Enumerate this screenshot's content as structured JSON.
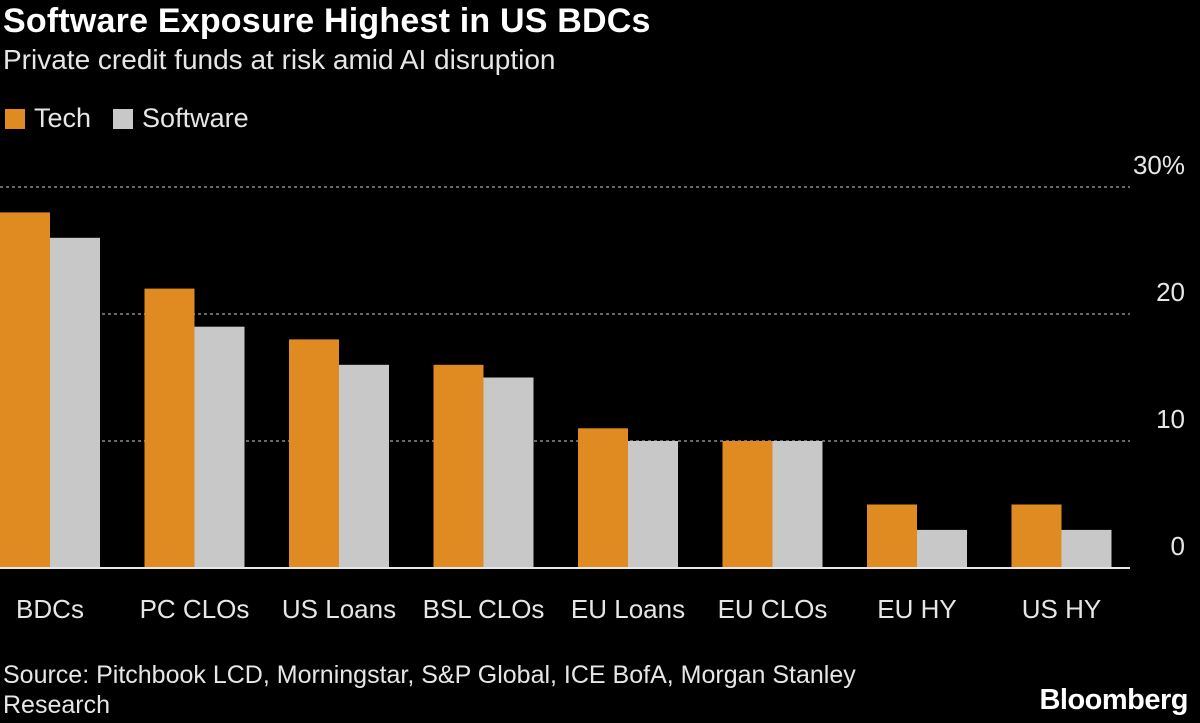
{
  "title": "Software Exposure Highest in US BDCs",
  "subtitle": "Private credit funds at risk amid AI disruption",
  "source": "Source: Pitchbook LCD, Morningstar, S&P Global, ICE BofA, Morgan Stanley Research",
  "logo": "Bloomberg",
  "colors": {
    "tech": "#e08b22",
    "software": "#c8c8c8",
    "grid": "#8a8a8a"
  },
  "chart_data": {
    "type": "bar",
    "categories": [
      "BDCs",
      "PC CLOs",
      "US Loans",
      "BSL CLOs",
      "EU Loans",
      "EU CLOs",
      "EU HY",
      "US HY"
    ],
    "series": [
      {
        "name": "Tech",
        "values": [
          28,
          22,
          18,
          16,
          11,
          10,
          5,
          5
        ]
      },
      {
        "name": "Software",
        "values": [
          26,
          19,
          16,
          15,
          10,
          10,
          3,
          3
        ]
      }
    ],
    "ylim": [
      0,
      30
    ],
    "yticks": [
      0,
      10,
      20,
      30
    ],
    "ytick_labels": [
      "0",
      "10",
      "20",
      "30%"
    ],
    "grid": true,
    "legend_position": "top-left",
    "y_axis_side": "right"
  }
}
